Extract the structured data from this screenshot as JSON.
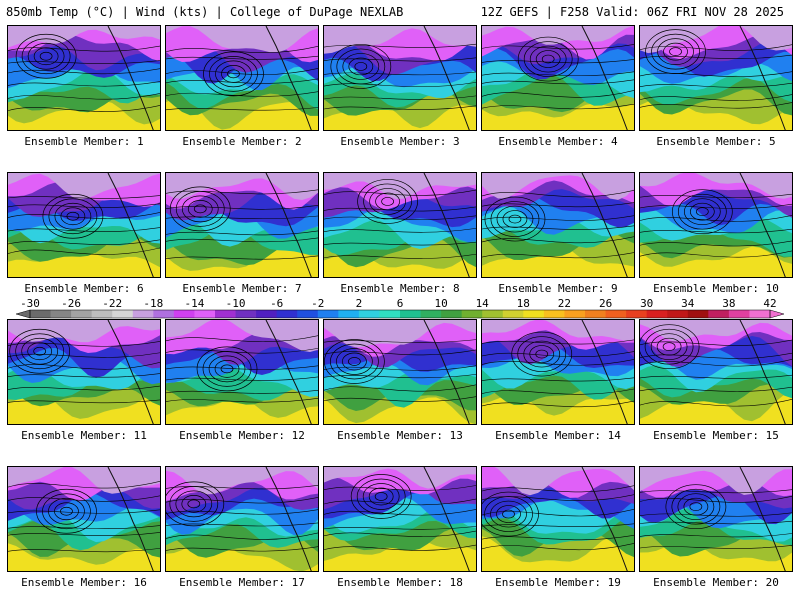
{
  "header": {
    "title_left": "850mb Temp (°C) | Wind (kts) | College of DuPage NEXLAB",
    "title_right": "12Z GEFS | F258 Valid: 06Z FRI NOV 28 2025"
  },
  "label_prefix": "Ensemble Member: ",
  "members": [
    {
      "id": 1,
      "label": "Ensemble Member: 1"
    },
    {
      "id": 2,
      "label": "Ensemble Member: 2"
    },
    {
      "id": 3,
      "label": "Ensemble Member: 3"
    },
    {
      "id": 4,
      "label": "Ensemble Member: 4"
    },
    {
      "id": 5,
      "label": "Ensemble Member: 5"
    },
    {
      "id": 6,
      "label": "Ensemble Member: 6"
    },
    {
      "id": 7,
      "label": "Ensemble Member: 7"
    },
    {
      "id": 8,
      "label": "Ensemble Member: 8"
    },
    {
      "id": 9,
      "label": "Ensemble Member: 9"
    },
    {
      "id": 10,
      "label": "Ensemble Member: 10"
    },
    {
      "id": 11,
      "label": "Ensemble Member: 11"
    },
    {
      "id": 12,
      "label": "Ensemble Member: 12"
    },
    {
      "id": 13,
      "label": "Ensemble Member: 13"
    },
    {
      "id": 14,
      "label": "Ensemble Member: 14"
    },
    {
      "id": 15,
      "label": "Ensemble Member: 15"
    },
    {
      "id": 16,
      "label": "Ensemble Member: 16"
    },
    {
      "id": 17,
      "label": "Ensemble Member: 17"
    },
    {
      "id": 18,
      "label": "Ensemble Member: 18"
    },
    {
      "id": 19,
      "label": "Ensemble Member: 19"
    },
    {
      "id": 20,
      "label": "Ensemble Member: 20"
    }
  ],
  "chart_data": {
    "type": "heatmap",
    "title": "850mb Temp (°C) | Wind (kts)",
    "variable": "850mb Temperature",
    "units": "°C",
    "model": "12Z GEFS",
    "forecast_hour": "F258",
    "valid": "06Z FRI NOV 28 2025",
    "colorbar": {
      "range": [
        -30,
        42
      ],
      "step": 2,
      "tick_labels": [
        "-30",
        "-26",
        "-22",
        "-18",
        "-14",
        "-10",
        "-6",
        "-2",
        "2",
        "6",
        "10",
        "14",
        "18",
        "22",
        "26",
        "30",
        "34",
        "38",
        "42"
      ],
      "tick_values": [
        -30,
        -26,
        -22,
        -18,
        -14,
        -10,
        -6,
        -2,
        2,
        6,
        10,
        14,
        18,
        22,
        26,
        30,
        34,
        38,
        42
      ],
      "colors": [
        "#6b6b6b",
        "#858585",
        "#a3a3a3",
        "#bdbdbd",
        "#d6d6d6",
        "#c8a0e0",
        "#b070e0",
        "#d040f0",
        "#e060f8",
        "#a030d0",
        "#7030c0",
        "#5020c0",
        "#3030d0",
        "#2050e0",
        "#2080f0",
        "#20b0f0",
        "#30d0e0",
        "#30e0c0",
        "#20c090",
        "#30b060",
        "#40a040",
        "#70b030",
        "#a0c030",
        "#d0d030",
        "#f0e020",
        "#f8c020",
        "#f8a020",
        "#f08020",
        "#f06020",
        "#e84020",
        "#d82020",
        "#c01818",
        "#a01010",
        "#c02060",
        "#e040a0",
        "#f070d0"
      ]
    },
    "panels": 20,
    "grid": "4 rows x 5 columns"
  }
}
